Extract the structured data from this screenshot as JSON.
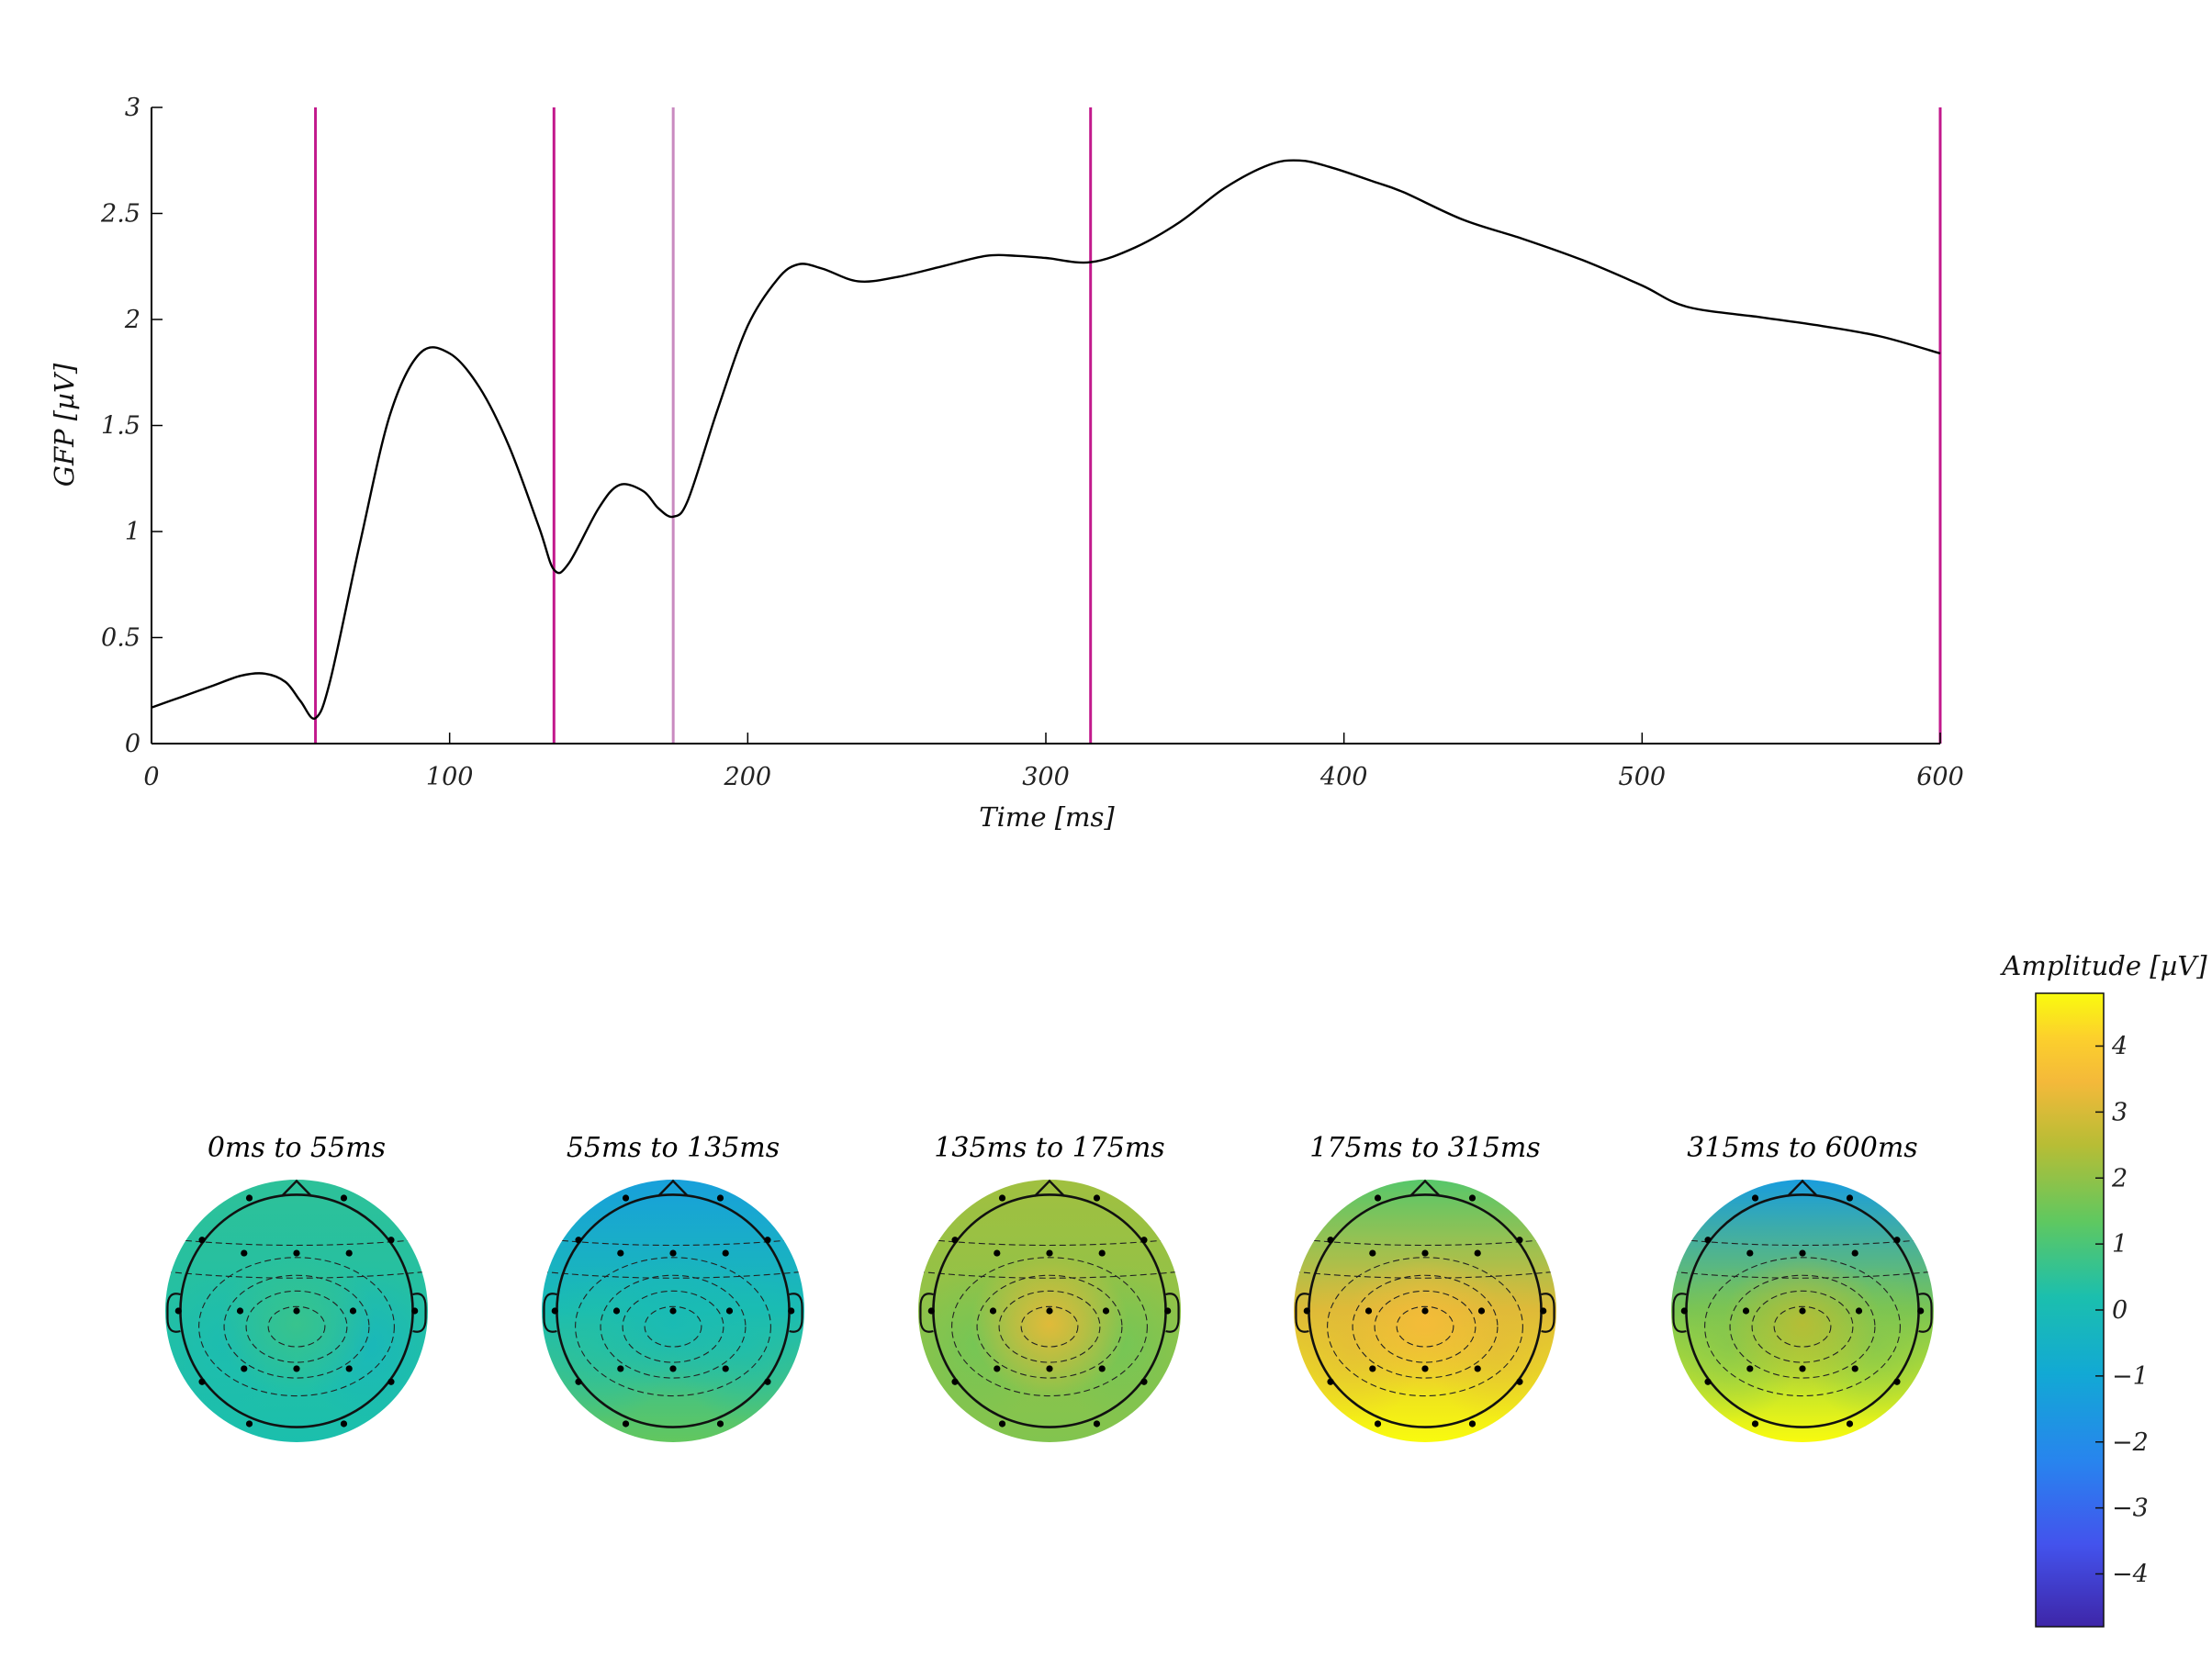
{
  "chart_data": [
    {
      "type": "line",
      "ylabel": "GFP [µV]",
      "xlabel": "Time [ms]",
      "xlim": [
        0,
        600
      ],
      "ylim": [
        0,
        3
      ],
      "xticks": [
        0,
        100,
        200,
        300,
        400,
        500,
        600
      ],
      "yticks": [
        0,
        0.5,
        1,
        1.5,
        2,
        2.5,
        3
      ],
      "ytick_labels": [
        "0",
        "0.5",
        "1",
        "1.5",
        "2",
        "2.5",
        "3"
      ],
      "series": [
        {
          "name": "GFP",
          "color": "#000000",
          "x": [
            0,
            10,
            20,
            30,
            38,
            45,
            50,
            55,
            60,
            70,
            80,
            90,
            100,
            110,
            120,
            130,
            135,
            140,
            150,
            157,
            165,
            170,
            175,
            180,
            190,
            200,
            210,
            217,
            225,
            237,
            250,
            265,
            280,
            290,
            300,
            315,
            330,
            345,
            360,
            375,
            385,
            395,
            410,
            420,
            440,
            460,
            480,
            500,
            515,
            540,
            560,
            580,
            600
          ],
          "y": [
            0.17,
            0.22,
            0.27,
            0.32,
            0.33,
            0.29,
            0.2,
            0.12,
            0.3,
            0.95,
            1.55,
            1.84,
            1.84,
            1.68,
            1.4,
            1.02,
            0.82,
            0.85,
            1.11,
            1.22,
            1.19,
            1.11,
            1.07,
            1.15,
            1.58,
            1.97,
            2.19,
            2.26,
            2.24,
            2.18,
            2.2,
            2.25,
            2.3,
            2.3,
            2.29,
            2.27,
            2.34,
            2.46,
            2.62,
            2.73,
            2.75,
            2.72,
            2.65,
            2.6,
            2.47,
            2.38,
            2.28,
            2.16,
            2.06,
            2.01,
            1.97,
            1.92,
            1.84
          ]
        }
      ],
      "vertical_markers": [
        {
          "x": 55,
          "color": "#c2198c"
        },
        {
          "x": 135,
          "color": "#c2198c"
        },
        {
          "x": 175,
          "color": "#c98ac0"
        },
        {
          "x": 315,
          "color": "#c2198c"
        },
        {
          "x": 600,
          "color": "#c2198c"
        }
      ]
    },
    {
      "type": "heatmap",
      "subtype": "scalp-topography",
      "colorbar": {
        "title": "Amplitude [µV]",
        "range": [
          -4.8,
          4.8
        ],
        "ticks": [
          4,
          3,
          2,
          1,
          0,
          -1,
          -2,
          -3,
          -4
        ],
        "tick_labels": [
          "4",
          "3",
          "2",
          "1",
          "0",
          "−1",
          "−2",
          "−3",
          "−4"
        ]
      },
      "maps": [
        {
          "title": "0ms to 55ms",
          "front": 0.5,
          "center": 0.7,
          "back": 0.2,
          "left": 0.0,
          "right": -0.4
        },
        {
          "title": "55ms to 135ms",
          "front": -1.3,
          "center": 0.0,
          "back": 1.4,
          "left": 0.3,
          "right": 0.1
        },
        {
          "title": "135ms to 175ms",
          "front": 2.2,
          "center": 3.2,
          "back": 1.8,
          "left": 1.5,
          "right": 1.5
        },
        {
          "title": "175ms to 315ms",
          "front": 1.2,
          "center": 3.5,
          "back": 5.0,
          "left": 3.2,
          "right": 3.2
        },
        {
          "title": "315ms to 600ms",
          "front": -1.4,
          "center": 2.5,
          "back": 4.8,
          "left": 1.8,
          "right": 1.8
        }
      ]
    }
  ]
}
